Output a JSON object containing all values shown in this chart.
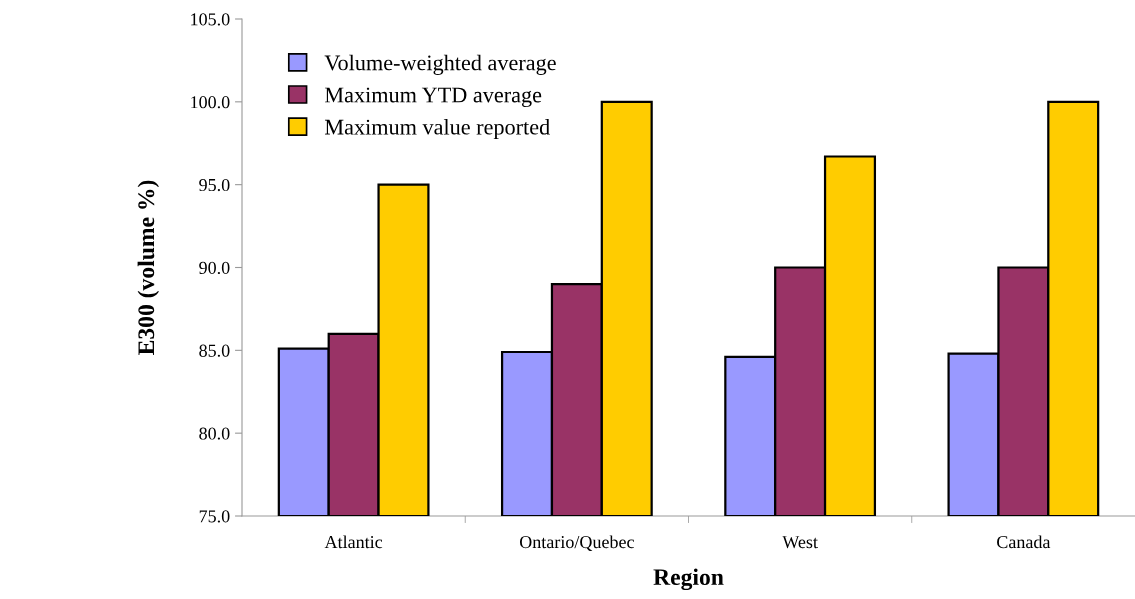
{
  "chart_data": {
    "type": "bar",
    "xlabel": "Region",
    "ylabel": "E300 (volume %)",
    "categories": [
      "Atlantic",
      "Ontario/Quebec",
      "West",
      "Canada"
    ],
    "series": [
      {
        "name": "Volume-weighted average",
        "color": "#9999ff",
        "values": [
          85.1,
          84.9,
          84.6,
          84.8
        ]
      },
      {
        "name": "Maximum YTD average",
        "color": "#993366",
        "values": [
          86.0,
          89.0,
          90.0,
          90.0
        ]
      },
      {
        "name": "Maximum value reported",
        "color": "#ffcc00",
        "values": [
          95.0,
          100.0,
          96.7,
          100.0
        ]
      }
    ],
    "ylim": [
      75,
      105
    ],
    "yticks": [
      {
        "value": 75,
        "label": "75.0"
      },
      {
        "value": 80,
        "label": "80.0"
      },
      {
        "value": 85,
        "label": "85.0"
      },
      {
        "value": 90,
        "label": "90.0"
      },
      {
        "value": 95,
        "label": "95.0"
      },
      {
        "value": 100,
        "label": "100.0"
      },
      {
        "value": 105,
        "label": "105.0"
      }
    ],
    "grid": false,
    "legend": "top left"
  }
}
